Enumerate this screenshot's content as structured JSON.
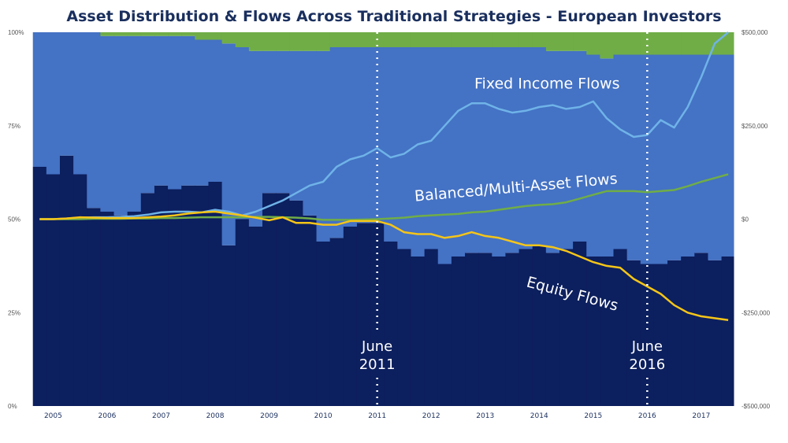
{
  "chart_data": {
    "type": "area",
    "title": "Asset Distribution & Flows Across Traditional Strategies - European Investors",
    "xlabel": "",
    "ylabel_left": "",
    "ylabel_right": "",
    "x_ticks": [
      "2005",
      "2006",
      "2007",
      "2008",
      "2009",
      "2010",
      "2011",
      "2012",
      "2013",
      "2014",
      "2015",
      "2016",
      "2017"
    ],
    "y_left_ticks": [
      "0%",
      "25%",
      "50%",
      "75%",
      "100%"
    ],
    "y_left_range": [
      0,
      100
    ],
    "y_right_ticks": [
      "-$500,000",
      "-$250,000",
      "$0",
      "$250,000",
      "$500,000"
    ],
    "y_right_range": [
      -500000,
      500000
    ],
    "x_range": [
      2004.6,
      2017.6
    ],
    "colors": {
      "equity_area": "#0c1f5e",
      "fixed_income_area": "#4472c4",
      "balanced_area": "#70ad47",
      "fixed_income_line": "#6fb3e8",
      "balanced_line": "#70ad47",
      "equity_line": "#f5c518",
      "vline": "#ffffff"
    },
    "stacked_allocation": {
      "x": [
        2004.75,
        2005.0,
        2005.25,
        2005.5,
        2005.75,
        2006.0,
        2006.25,
        2006.5,
        2006.75,
        2007.0,
        2007.25,
        2007.5,
        2007.75,
        2008.0,
        2008.25,
        2008.5,
        2008.75,
        2009.0,
        2009.25,
        2009.5,
        2009.75,
        2010.0,
        2010.25,
        2010.5,
        2010.75,
        2011.0,
        2011.25,
        2011.5,
        2011.75,
        2012.0,
        2012.25,
        2012.5,
        2012.75,
        2013.0,
        2013.25,
        2013.5,
        2013.75,
        2014.0,
        2014.25,
        2014.5,
        2014.75,
        2015.0,
        2015.25,
        2015.5,
        2015.75,
        2016.0,
        2016.25,
        2016.5,
        2016.75,
        2017.0,
        2017.25,
        2017.5
      ],
      "series": [
        {
          "name": "Equity",
          "values": [
            64,
            62,
            67,
            62,
            53,
            52,
            51,
            52,
            57,
            59,
            58,
            59,
            59,
            60,
            43,
            50,
            48,
            57,
            57,
            55,
            51,
            44,
            45,
            48,
            49,
            49,
            44,
            42,
            40,
            42,
            38,
            40,
            41,
            41,
            40,
            41,
            42,
            43,
            41,
            42,
            44,
            40,
            40,
            42,
            39,
            38,
            38,
            39,
            40,
            41,
            39,
            40
          ]
        },
        {
          "name": "Fixed Income",
          "values": [
            36,
            38,
            33,
            38,
            47,
            47,
            48,
            47,
            42,
            40,
            41,
            40,
            39,
            38,
            54,
            46,
            47,
            38,
            38,
            40,
            44,
            51,
            51,
            48,
            47,
            47,
            52,
            54,
            56,
            54,
            58,
            56,
            55,
            55,
            56,
            55,
            54,
            53,
            54,
            53,
            51,
            54,
            53,
            52,
            55,
            56,
            56,
            55,
            54,
            53,
            55,
            54
          ]
        },
        {
          "name": "Balanced/Multi-Asset",
          "values": [
            0,
            0,
            0,
            0,
            0,
            1,
            1,
            1,
            1,
            1,
            1,
            1,
            2,
            2,
            3,
            4,
            5,
            5,
            5,
            5,
            5,
            5,
            4,
            4,
            4,
            4,
            4,
            4,
            4,
            4,
            4,
            4,
            4,
            4,
            4,
            4,
            4,
            4,
            5,
            5,
            5,
            6,
            7,
            6,
            6,
            6,
            6,
            6,
            6,
            6,
            6,
            6
          ]
        }
      ]
    },
    "flow_lines": {
      "x": [
        2004.75,
        2005.0,
        2005.25,
        2005.5,
        2005.75,
        2006.0,
        2006.25,
        2006.5,
        2006.75,
        2007.0,
        2007.25,
        2007.5,
        2007.75,
        2008.0,
        2008.25,
        2008.5,
        2008.75,
        2009.0,
        2009.25,
        2009.5,
        2009.75,
        2010.0,
        2010.25,
        2010.5,
        2010.75,
        2011.0,
        2011.25,
        2011.5,
        2011.75,
        2012.0,
        2012.25,
        2012.5,
        2012.75,
        2013.0,
        2013.25,
        2013.5,
        2013.75,
        2014.0,
        2014.25,
        2014.5,
        2014.75,
        2015.0,
        2015.25,
        2015.5,
        2015.75,
        2016.0,
        2016.25,
        2016.5,
        2016.75,
        2017.0,
        2017.25,
        2017.5
      ],
      "series": [
        {
          "name": "Fixed Income Flows",
          "values": [
            0,
            0,
            2000,
            4000,
            5000,
            5000,
            6000,
            8000,
            12000,
            18000,
            20000,
            20000,
            18000,
            25000,
            20000,
            10000,
            20000,
            35000,
            50000,
            70000,
            90000,
            100000,
            140000,
            160000,
            170000,
            190000,
            165000,
            175000,
            200000,
            210000,
            250000,
            290000,
            310000,
            310000,
            295000,
            285000,
            290000,
            300000,
            305000,
            295000,
            300000,
            315000,
            270000,
            240000,
            220000,
            225000,
            265000,
            245000,
            300000,
            380000,
            470000,
            500000
          ]
        },
        {
          "name": "Balanced/Multi-Asset Flows",
          "values": [
            0,
            0,
            0,
            0,
            1000,
            1000,
            1000,
            2000,
            2000,
            3000,
            3000,
            4000,
            5000,
            5000,
            5000,
            5000,
            6000,
            6000,
            5000,
            4000,
            2000,
            -2000,
            -2000,
            -2000,
            -1000,
            0,
            2000,
            4000,
            8000,
            10000,
            12000,
            14000,
            18000,
            20000,
            25000,
            30000,
            35000,
            38000,
            40000,
            45000,
            55000,
            65000,
            75000,
            75000,
            75000,
            72000,
            75000,
            78000,
            88000,
            100000,
            110000,
            120000
          ]
        },
        {
          "name": "Equity Flows",
          "values": [
            0,
            0,
            2000,
            5000,
            4000,
            3000,
            3000,
            3000,
            5000,
            7000,
            10000,
            15000,
            18000,
            20000,
            15000,
            10000,
            4000,
            -3000,
            5000,
            -10000,
            -10000,
            -15000,
            -15000,
            -5000,
            -5000,
            -5000,
            -15000,
            -35000,
            -40000,
            -40000,
            -50000,
            -45000,
            -35000,
            -45000,
            -50000,
            -60000,
            -70000,
            -70000,
            -75000,
            -85000,
            -100000,
            -115000,
            -125000,
            -130000,
            -160000,
            -180000,
            -200000,
            -230000,
            -250000,
            -260000,
            -265000,
            -270000
          ]
        }
      ]
    },
    "vlines": [
      {
        "x": 2011.0,
        "label_line1": "June",
        "label_line2": "2011"
      },
      {
        "x": 2016.0,
        "label_line1": "June",
        "label_line2": "2016"
      }
    ],
    "annotations": [
      {
        "text": "Fixed Income Flows",
        "x": 2012.8,
        "y": 350000
      },
      {
        "text": "Balanced/Multi-Asset Flows",
        "x": 2011.7,
        "y": 48000,
        "rotate": -5
      },
      {
        "text": "Equity Flows",
        "x": 2013.75,
        "y": -180000,
        "rotate": 15
      }
    ]
  }
}
